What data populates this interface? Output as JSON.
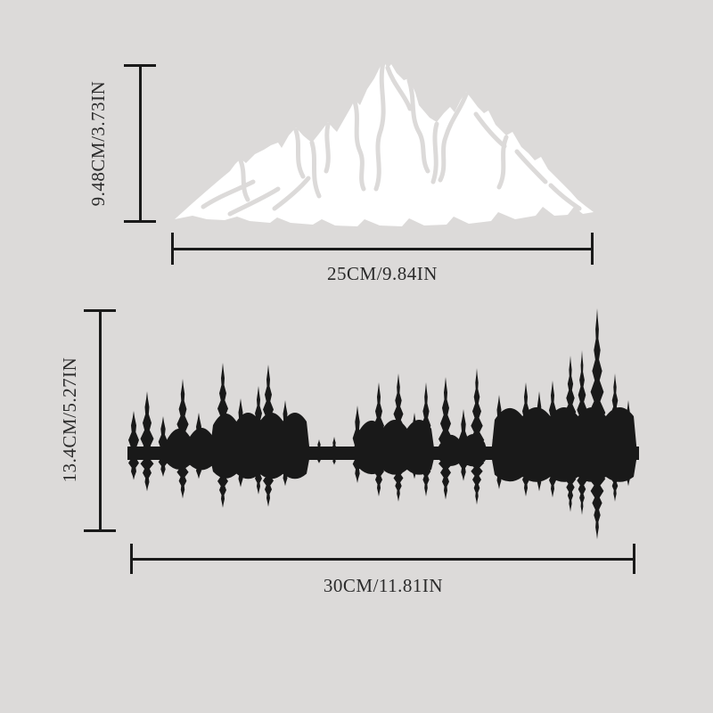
{
  "diagram": {
    "mountain": {
      "height_label": "9.48CM/3.73IN",
      "width_label": "25CM/9.84IN"
    },
    "forest": {
      "height_label": "13.4CM/5.27IN",
      "width_label": "30CM/11.81IN"
    }
  },
  "colors": {
    "bg": "#dcdad9",
    "line": "#1a1a1a",
    "text": "#2b2b2b",
    "mountain": "#ffffff",
    "forest": "#191919"
  }
}
